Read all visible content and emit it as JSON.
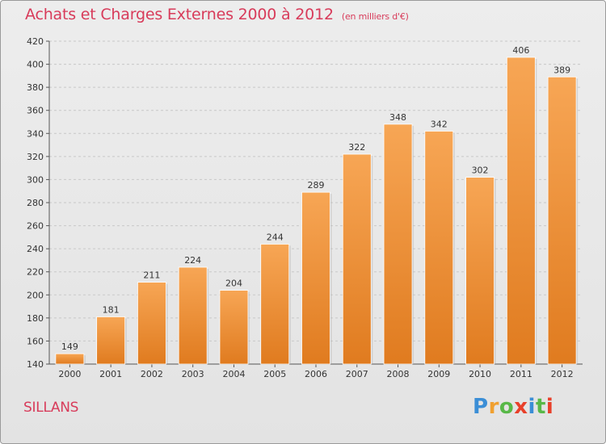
{
  "title": "Achats et Charges Externes 2000 à 2012",
  "unit": "(en milliers d'€)",
  "commune": "SILLANS",
  "logo": {
    "letters": [
      "P",
      "r",
      "o",
      "x",
      "i",
      "t",
      "i"
    ],
    "colors": [
      "#3b8ed6",
      "#f0a030",
      "#58b848",
      "#e8402a",
      "#3b8ed6",
      "#58b848",
      "#e8402a"
    ]
  },
  "colors": {
    "title": "#d83b5a",
    "bar_top": "#f7a655",
    "bar_bottom": "#e07b1f",
    "grid": "#c8c8c8",
    "axis": "#555555"
  },
  "chart_data": {
    "type": "bar",
    "categories": [
      "2000",
      "2001",
      "2002",
      "2003",
      "2004",
      "2005",
      "2006",
      "2007",
      "2008",
      "2009",
      "2010",
      "2011",
      "2012"
    ],
    "values": [
      149,
      181,
      211,
      224,
      204,
      244,
      289,
      322,
      348,
      342,
      302,
      406,
      389
    ],
    "ylim": [
      140,
      420
    ],
    "yticks": [
      140,
      160,
      180,
      200,
      220,
      240,
      260,
      280,
      300,
      320,
      340,
      360,
      380,
      400,
      420
    ],
    "grid": true
  }
}
